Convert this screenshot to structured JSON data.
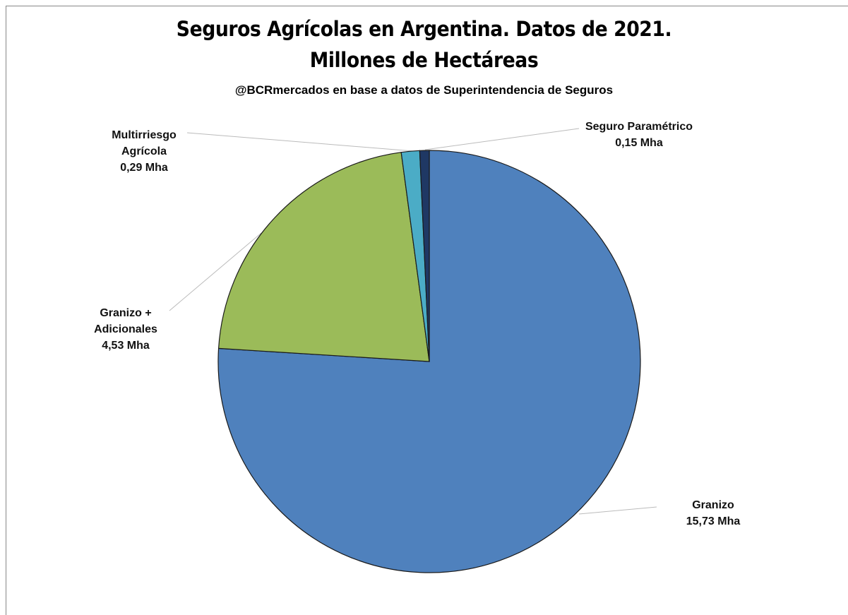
{
  "chart_data": {
    "type": "pie",
    "title": [
      "Seguros Agrícolas en Argentina. Datos de 2021.",
      "Millones de Hectáreas"
    ],
    "subtitle": "@BCRmercados en base a datos de Superintendencia de Seguros",
    "categories": [
      "Granizo",
      "Granizo + Adicionales",
      "Multirriesgo Agrícola",
      "Seguro Paramétrico"
    ],
    "values": [
      15.73,
      4.53,
      0.29,
      0.15
    ],
    "value_labels": [
      "15,73 Mha",
      "4,53 Mha",
      "0,29 Mha",
      "0,15 Mha"
    ],
    "colors": [
      "#4f81bd",
      "#9bbb59",
      "#4bacc6",
      "#1f3864"
    ]
  }
}
